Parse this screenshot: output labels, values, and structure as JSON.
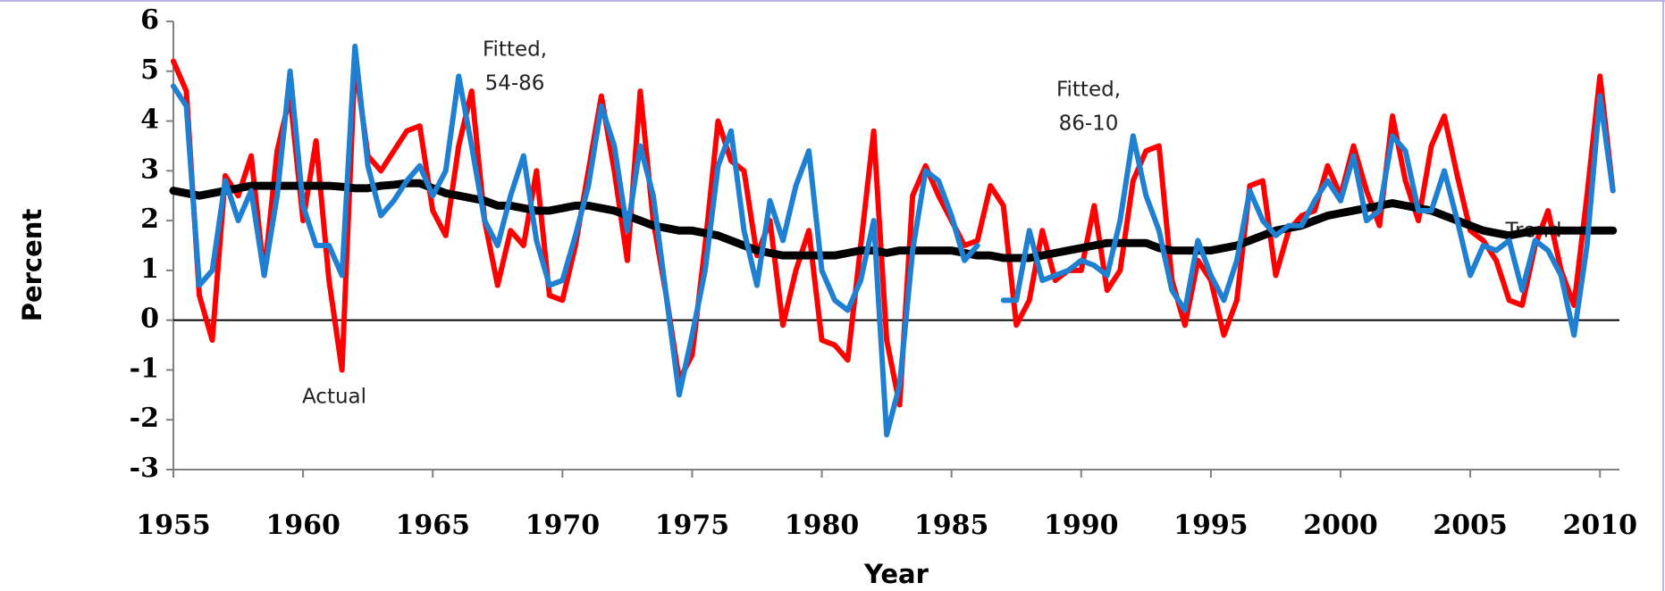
{
  "chart_data": {
    "type": "line",
    "x_label": "Year",
    "y_label": "Percent",
    "xlim": [
      1955,
      2010.75
    ],
    "ylim": [
      -3,
      6
    ],
    "xticks": [
      1955,
      1960,
      1965,
      1970,
      1975,
      1980,
      1985,
      1990,
      1995,
      2000,
      2005,
      2010
    ],
    "yticks": [
      -3,
      -2,
      -1,
      0,
      1,
      2,
      3,
      4,
      5,
      6
    ],
    "zero_line": true,
    "x": [
      1955,
      1955.5,
      1956,
      1956.5,
      1957,
      1957.5,
      1958,
      1958.5,
      1959,
      1959.5,
      1960,
      1960.5,
      1961,
      1961.5,
      1962,
      1962.5,
      1963,
      1963.5,
      1964,
      1964.5,
      1965,
      1965.5,
      1966,
      1966.5,
      1967,
      1967.5,
      1968,
      1968.5,
      1969,
      1969.5,
      1970,
      1970.5,
      1971,
      1971.5,
      1972,
      1972.5,
      1973,
      1973.5,
      1974,
      1974.5,
      1975,
      1975.5,
      1976,
      1976.5,
      1977,
      1977.5,
      1978,
      1978.5,
      1979,
      1979.5,
      1980,
      1980.5,
      1981,
      1981.5,
      1982,
      1982.5,
      1983,
      1983.5,
      1984,
      1984.5,
      1985,
      1985.5,
      1986,
      1986.5,
      1987,
      1987.5,
      1988,
      1988.5,
      1989,
      1989.5,
      1990,
      1990.5,
      1991,
      1991.5,
      1992,
      1992.5,
      1993,
      1993.5,
      1994,
      1994.5,
      1995,
      1995.5,
      1996,
      1996.5,
      1997,
      1997.5,
      1998,
      1998.5,
      1999,
      1999.5,
      2000,
      2000.5,
      2001,
      2001.5,
      2002,
      2002.5,
      2003,
      2003.5,
      2004,
      2004.5,
      2005,
      2005.5,
      2006,
      2006.5,
      2007,
      2007.5,
      2008,
      2008.5,
      2009,
      2009.5,
      2010,
      2010.5
    ],
    "series": [
      {
        "name": "Actual",
        "color": "#ff0000",
        "width": 6,
        "values": [
          5.2,
          4.6,
          0.5,
          -0.4,
          2.9,
          2.5,
          3.3,
          0.9,
          3.4,
          4.5,
          2.0,
          3.6,
          0.8,
          -1.0,
          5.2,
          3.3,
          3.0,
          3.4,
          3.8,
          3.9,
          2.2,
          1.7,
          3.5,
          4.6,
          2.0,
          0.7,
          1.8,
          1.5,
          3.0,
          0.5,
          0.4,
          1.5,
          3.0,
          4.5,
          3.0,
          1.2,
          4.6,
          2.0,
          0.5,
          -1.2,
          -0.7,
          1.5,
          4.0,
          3.2,
          3.0,
          1.3,
          2.0,
          -0.1,
          1.0,
          1.8,
          -0.4,
          -0.5,
          -0.8,
          1.5,
          3.8,
          -0.4,
          -1.7,
          2.5,
          3.1,
          2.5,
          2.0,
          1.5,
          1.6,
          2.7,
          2.3,
          -0.1,
          0.4,
          1.8,
          0.8,
          1.0,
          1.0,
          2.3,
          0.6,
          1.0,
          2.8,
          3.4,
          3.5,
          0.8,
          -0.1,
          1.2,
          0.8,
          -0.3,
          0.4,
          2.7,
          2.8,
          0.9,
          1.8,
          2.1,
          2.2,
          3.1,
          2.5,
          3.5,
          2.6,
          1.9,
          4.1,
          2.8,
          2.0,
          3.5,
          4.1,
          2.9,
          1.8,
          1.6,
          1.2,
          0.4,
          0.3,
          1.5,
          2.2,
          1.0,
          0.3,
          2.5,
          4.9,
          2.6
        ]
      },
      {
        "color": "#1f7fd0",
        "width": 6,
        "values": [
          4.7,
          4.3,
          0.7,
          1.0,
          2.8,
          2.0,
          2.6,
          0.9,
          2.5,
          5.0,
          2.3,
          1.5,
          1.5,
          0.9,
          5.5,
          3.1,
          2.1,
          2.4,
          2.8,
          3.1,
          2.5,
          3.0,
          4.9,
          3.5,
          2.0,
          1.5,
          2.5,
          3.3,
          1.6,
          0.7,
          0.8,
          1.7,
          2.7,
          4.3,
          3.5,
          1.8,
          3.5,
          2.5,
          0.5,
          -1.5,
          -0.3,
          1.0,
          3.1,
          3.8,
          1.8,
          0.7,
          2.4,
          1.6,
          2.7,
          3.4,
          1.0,
          0.4,
          0.2,
          0.8,
          2.0,
          -2.3,
          -1.3,
          1.4,
          3.0,
          2.8,
          2.1,
          1.2,
          1.5,
          null,
          0.4,
          0.4,
          1.8,
          0.8,
          0.9,
          1.0,
          1.2,
          1.1,
          0.9,
          2.0,
          3.7,
          2.5,
          1.8,
          0.6,
          0.2,
          1.6,
          0.9,
          0.4,
          1.2,
          2.6,
          2.0,
          1.7,
          1.9,
          1.9,
          2.4,
          2.8,
          2.4,
          3.3,
          2.0,
          2.2,
          3.7,
          3.4,
          2.2,
          2.2,
          3.0,
          2.0,
          0.9,
          1.5,
          1.4,
          1.6,
          0.6,
          1.6,
          1.4,
          0.9,
          -0.3,
          1.5,
          4.5,
          2.6
        ]
      },
      {
        "name": "Trend",
        "color": "#000000",
        "width": 9,
        "values": [
          2.6,
          2.55,
          2.5,
          2.55,
          2.6,
          2.65,
          2.7,
          2.7,
          2.7,
          2.7,
          2.7,
          2.7,
          2.7,
          2.68,
          2.65,
          2.65,
          2.7,
          2.72,
          2.75,
          2.75,
          2.65,
          2.55,
          2.5,
          2.45,
          2.4,
          2.3,
          2.3,
          2.25,
          2.2,
          2.2,
          2.25,
          2.3,
          2.3,
          2.25,
          2.2,
          2.1,
          2.0,
          1.9,
          1.85,
          1.8,
          1.8,
          1.75,
          1.7,
          1.6,
          1.5,
          1.4,
          1.35,
          1.3,
          1.3,
          1.3,
          1.3,
          1.3,
          1.35,
          1.4,
          1.4,
          1.35,
          1.4,
          1.4,
          1.4,
          1.4,
          1.4,
          1.35,
          1.3,
          1.3,
          1.25,
          1.25,
          1.25,
          1.3,
          1.35,
          1.4,
          1.45,
          1.5,
          1.55,
          1.55,
          1.55,
          1.55,
          1.45,
          1.4,
          1.4,
          1.4,
          1.4,
          1.45,
          1.5,
          1.6,
          1.7,
          1.8,
          1.85,
          1.9,
          2.0,
          2.1,
          2.15,
          2.2,
          2.25,
          2.3,
          2.35,
          2.3,
          2.25,
          2.2,
          2.1,
          2.0,
          1.9,
          1.8,
          1.75,
          1.7,
          1.75,
          1.8,
          1.8,
          1.8,
          1.8,
          1.8,
          1.8,
          1.8
        ]
      }
    ],
    "annotations": [
      [
        "Fitted,",
        "54-86"
      ],
      [
        "Fitted,",
        "86-10"
      ]
    ]
  }
}
